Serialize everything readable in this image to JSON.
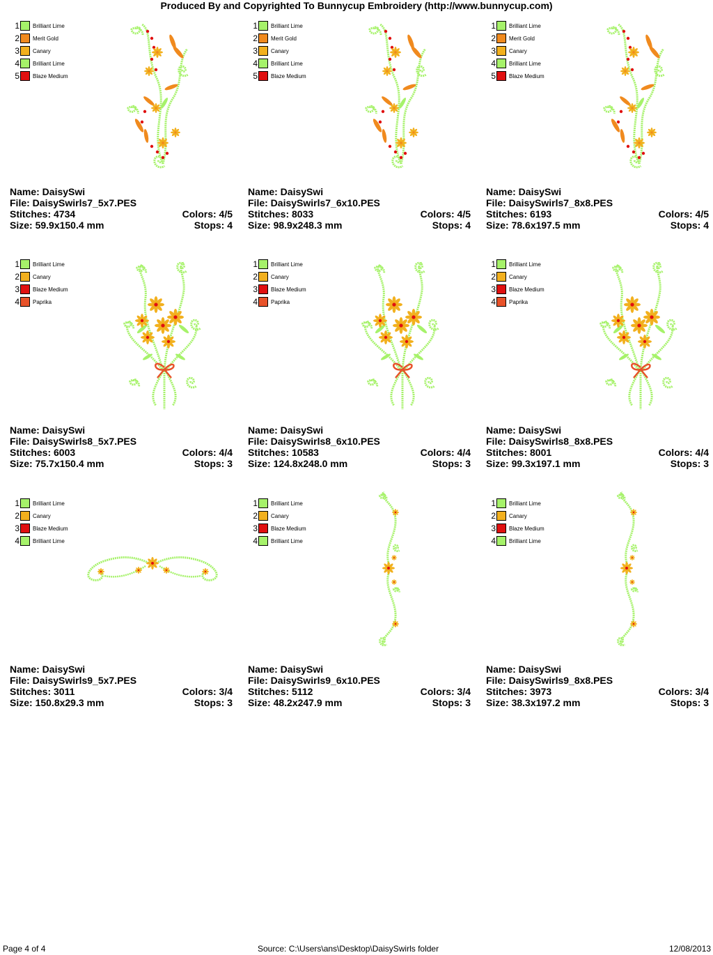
{
  "header": "Produced By and Copyrighted To Bunnycup Embroidery (http://www.bunnycup.com)",
  "colors": {
    "Brilliant Lime": "#a6f26a",
    "Merit Gold": "#f08a1e",
    "Canary": "#f2b01e",
    "Blaze Medium": "#e01010",
    "Paprika": "#e8522a"
  },
  "designs": [
    {
      "name_line": "Name: DaisySwi",
      "file_line": "File: DaisySwirls7_5x7.PES",
      "stitches_line": "Stitches: 4734",
      "colors_line": "Colors: 4/5",
      "size_line": "Size: 59.9x150.4 mm",
      "stops_line": "Stops: 4",
      "legend": [
        "Brilliant Lime",
        "Merit Gold",
        "Canary",
        "Brilliant Lime",
        "Blaze Medium"
      ],
      "motif": "swirl-tall"
    },
    {
      "name_line": "Name: DaisySwi",
      "file_line": "File: DaisySwirls7_6x10.PES",
      "stitches_line": "Stitches: 8033",
      "colors_line": "Colors: 4/5",
      "size_line": "Size: 98.9x248.3 mm",
      "stops_line": "Stops: 4",
      "legend": [
        "Brilliant Lime",
        "Merit Gold",
        "Canary",
        "Brilliant Lime",
        "Blaze Medium"
      ],
      "motif": "swirl-tall"
    },
    {
      "name_line": "Name: DaisySwi",
      "file_line": "File: DaisySwirls7_8x8.PES",
      "stitches_line": "Stitches: 6193",
      "colors_line": "Colors: 4/5",
      "size_line": "Size: 78.6x197.5 mm",
      "stops_line": "Stops: 4",
      "legend": [
        "Brilliant Lime",
        "Merit Gold",
        "Canary",
        "Brilliant Lime",
        "Blaze Medium"
      ],
      "motif": "swirl-tall"
    },
    {
      "name_line": "Name: DaisySwi",
      "file_line": "File: DaisySwirls8_5x7.PES",
      "stitches_line": "Stitches: 6003",
      "colors_line": "Colors: 4/4",
      "size_line": "Size: 75.7x150.4 mm",
      "stops_line": "Stops: 3",
      "legend": [
        "Brilliant Lime",
        "Canary",
        "Blaze Medium",
        "Paprika"
      ],
      "motif": "bouquet"
    },
    {
      "name_line": "Name: DaisySwi",
      "file_line": "File: DaisySwirls8_6x10.PES",
      "stitches_line": "Stitches: 10583",
      "colors_line": "Colors: 4/4",
      "size_line": "Size: 124.8x248.0 mm",
      "stops_line": "Stops: 3",
      "legend": [
        "Brilliant Lime",
        "Canary",
        "Blaze Medium",
        "Paprika"
      ],
      "motif": "bouquet"
    },
    {
      "name_line": "Name: DaisySwi",
      "file_line": "File: DaisySwirls8_8x8.PES",
      "stitches_line": "Stitches: 8001",
      "colors_line": "Colors: 4/4",
      "size_line": "Size: 99.3x197.1 mm",
      "stops_line": "Stops: 3",
      "legend": [
        "Brilliant Lime",
        "Canary",
        "Blaze Medium",
        "Paprika"
      ],
      "motif": "bouquet"
    },
    {
      "name_line": "Name: DaisySwi",
      "file_line": "File: DaisySwirls9_5x7.PES",
      "stitches_line": "Stitches: 3011",
      "colors_line": "Colors: 3/4",
      "size_line": "Size: 150.8x29.3 mm",
      "stops_line": "Stops: 3",
      "legend": [
        "Brilliant Lime",
        "Canary",
        "Blaze Medium",
        "Brilliant Lime"
      ],
      "motif": "border-horizontal"
    },
    {
      "name_line": "Name: DaisySwi",
      "file_line": "File: DaisySwirls9_6x10.PES",
      "stitches_line": "Stitches: 5112",
      "colors_line": "Colors: 3/4",
      "size_line": "Size: 48.2x247.9 mm",
      "stops_line": "Stops: 3",
      "legend": [
        "Brilliant Lime",
        "Canary",
        "Blaze Medium",
        "Brilliant Lime"
      ],
      "motif": "border-vertical"
    },
    {
      "name_line": "Name: DaisySwi",
      "file_line": "File: DaisySwirls9_8x8.PES",
      "stitches_line": "Stitches: 3973",
      "colors_line": "Colors: 3/4",
      "size_line": "Size: 38.3x197.2 mm",
      "stops_line": "Stops: 3",
      "legend": [
        "Brilliant Lime",
        "Canary",
        "Blaze Medium",
        "Brilliant Lime"
      ],
      "motif": "border-vertical"
    }
  ],
  "footer": {
    "page": "Page 4 of 4",
    "source": "Source: C:\\Users\\ans\\Desktop\\DaisySwirls folder",
    "date": "12/08/2013"
  }
}
